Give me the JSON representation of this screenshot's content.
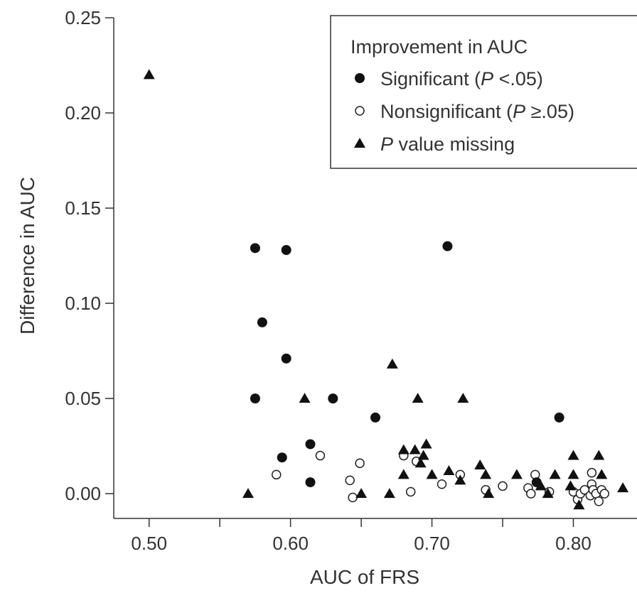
{
  "chart_data": {
    "type": "scatter",
    "xlabel": "AUC of FRS",
    "ylabel": "Difference in AUC",
    "xlim": [
      0.475,
      0.845
    ],
    "ylim": [
      -0.013,
      0.25
    ],
    "x_ticks": [
      0.5,
      0.55,
      0.6,
      0.65,
      0.7,
      0.75,
      0.8
    ],
    "x_tick_labels": [
      "0.50",
      "",
      "0.60",
      "",
      "0.70",
      "",
      "0.80"
    ],
    "y_ticks": [
      0.0,
      0.05,
      0.1,
      0.15,
      0.2,
      0.25
    ],
    "y_tick_labels": [
      "0.00",
      "0.05",
      "0.10",
      "0.15",
      "0.20",
      "0.25"
    ],
    "grid": false,
    "legend": {
      "title": "Improvement in AUC",
      "placement": "top-right",
      "entries": [
        {
          "marker": "filled-circle",
          "label": "Significant (",
          "label_italic": "P",
          "label_after": " <.05)"
        },
        {
          "marker": "open-circle",
          "label": "Nonsignificant (",
          "label_italic": "P",
          "label_after": " ≥.05)"
        },
        {
          "marker": "filled-triangle",
          "label": "",
          "label_italic": "P",
          "label_after": " value missing"
        }
      ]
    },
    "series": [
      {
        "name": "Significant (P <.05)",
        "marker": "filled-circle",
        "points": [
          [
            0.575,
            0.129
          ],
          [
            0.597,
            0.128
          ],
          [
            0.58,
            0.09
          ],
          [
            0.597,
            0.071
          ],
          [
            0.575,
            0.05
          ],
          [
            0.63,
            0.05
          ],
          [
            0.66,
            0.04
          ],
          [
            0.614,
            0.026
          ],
          [
            0.594,
            0.019
          ],
          [
            0.614,
            0.006
          ],
          [
            0.711,
            0.13
          ],
          [
            0.79,
            0.04
          ],
          [
            0.774,
            0.006
          ]
        ]
      },
      {
        "name": "Nonsignificant (P ≥.05)",
        "marker": "open-circle",
        "points": [
          [
            0.59,
            0.01
          ],
          [
            0.621,
            0.02
          ],
          [
            0.642,
            0.007
          ],
          [
            0.644,
            -0.002
          ],
          [
            0.649,
            0.016
          ],
          [
            0.68,
            0.02
          ],
          [
            0.685,
            0.001
          ],
          [
            0.689,
            0.017
          ],
          [
            0.707,
            0.005
          ],
          [
            0.72,
            0.01
          ],
          [
            0.738,
            0.002
          ],
          [
            0.75,
            0.004
          ],
          [
            0.768,
            0.003
          ],
          [
            0.77,
            0.0
          ],
          [
            0.773,
            0.01
          ],
          [
            0.783,
            0.001
          ],
          [
            0.8,
            0.001
          ],
          [
            0.803,
            -0.003
          ],
          [
            0.805,
            0.0
          ],
          [
            0.808,
            0.002
          ],
          [
            0.812,
            -0.001
          ],
          [
            0.813,
            0.011
          ],
          [
            0.813,
            0.005
          ],
          [
            0.814,
            0.002
          ],
          [
            0.816,
            0.0
          ],
          [
            0.818,
            -0.004
          ],
          [
            0.82,
            0.002
          ],
          [
            0.822,
            0.0
          ]
        ]
      },
      {
        "name": "P value missing",
        "marker": "filled-triangle",
        "points": [
          [
            0.5,
            0.22
          ],
          [
            0.57,
            0.0
          ],
          [
            0.61,
            0.05
          ],
          [
            0.65,
            0.0
          ],
          [
            0.67,
            0.0
          ],
          [
            0.672,
            0.068
          ],
          [
            0.68,
            0.023
          ],
          [
            0.68,
            0.01
          ],
          [
            0.688,
            0.023
          ],
          [
            0.69,
            0.05
          ],
          [
            0.692,
            0.016
          ],
          [
            0.694,
            0.02
          ],
          [
            0.696,
            0.026
          ],
          [
            0.7,
            0.01
          ],
          [
            0.712,
            0.012
          ],
          [
            0.72,
            0.007
          ],
          [
            0.722,
            0.05
          ],
          [
            0.734,
            0.015
          ],
          [
            0.738,
            0.01
          ],
          [
            0.74,
            0.0
          ],
          [
            0.76,
            0.01
          ],
          [
            0.777,
            0.004
          ],
          [
            0.782,
            0.0
          ],
          [
            0.787,
            0.01
          ],
          [
            0.798,
            0.004
          ],
          [
            0.8,
            0.02
          ],
          [
            0.8,
            0.01
          ],
          [
            0.804,
            -0.006
          ],
          [
            0.818,
            0.02
          ],
          [
            0.82,
            0.01
          ],
          [
            0.835,
            0.003
          ]
        ]
      }
    ]
  }
}
